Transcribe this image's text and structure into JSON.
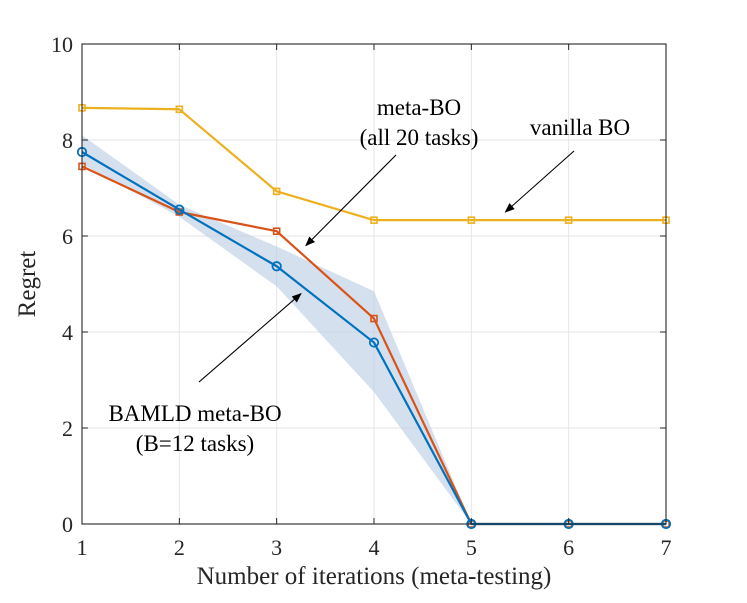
{
  "chart_data": {
    "type": "line",
    "title": "",
    "xlabel": "Number of iterations (meta-testing)",
    "ylabel": "Regret",
    "xlim": [
      1,
      7
    ],
    "ylim": [
      0,
      10
    ],
    "xticks": [
      1,
      2,
      3,
      4,
      5,
      6,
      7
    ],
    "yticks": [
      0,
      2,
      4,
      6,
      8,
      10
    ],
    "grid": true,
    "series": [
      {
        "name": "vanilla BO",
        "color": "#EDB120",
        "marker": "square",
        "x": [
          1,
          2,
          3,
          4,
          5,
          6,
          7
        ],
        "values": [
          8.67,
          8.64,
          6.93,
          6.33,
          6.33,
          6.33,
          6.33
        ]
      },
      {
        "name": "meta-BO (all 20 tasks)",
        "color": "#D95319",
        "marker": "square",
        "x": [
          1,
          2,
          3,
          4,
          5,
          6,
          7
        ],
        "values": [
          7.45,
          6.5,
          6.1,
          4.28,
          0,
          0,
          0
        ]
      },
      {
        "name": "BAMLD meta-BO (B=12 tasks)",
        "color": "#0072BD",
        "marker": "circle",
        "x": [
          1,
          2,
          3,
          4,
          5,
          6,
          7
        ],
        "values": [
          7.75,
          6.55,
          5.37,
          3.78,
          0,
          0,
          0
        ],
        "band": {
          "color": "#B3C6E0",
          "lower": [
            7.5,
            6.4,
            4.95,
            2.75,
            0,
            0,
            0
          ],
          "upper": [
            8.1,
            6.65,
            5.78,
            4.85,
            0,
            0,
            0
          ]
        }
      }
    ],
    "annotations": [
      {
        "lines": [
          "meta-BO",
          "(all 20 tasks)"
        ],
        "target_series": "meta-BO (all 20 tasks)",
        "target": [
          3.3,
          5.8
        ]
      },
      {
        "lines": [
          "vanilla BO"
        ],
        "target_series": "vanilla BO",
        "target": [
          5.35,
          6.5
        ]
      },
      {
        "lines": [
          "BAMLD meta-BO",
          "(B=12 tasks)"
        ],
        "target_series": "BAMLD meta-BO (B=12 tasks)",
        "target": [
          3.25,
          4.8
        ]
      }
    ]
  }
}
